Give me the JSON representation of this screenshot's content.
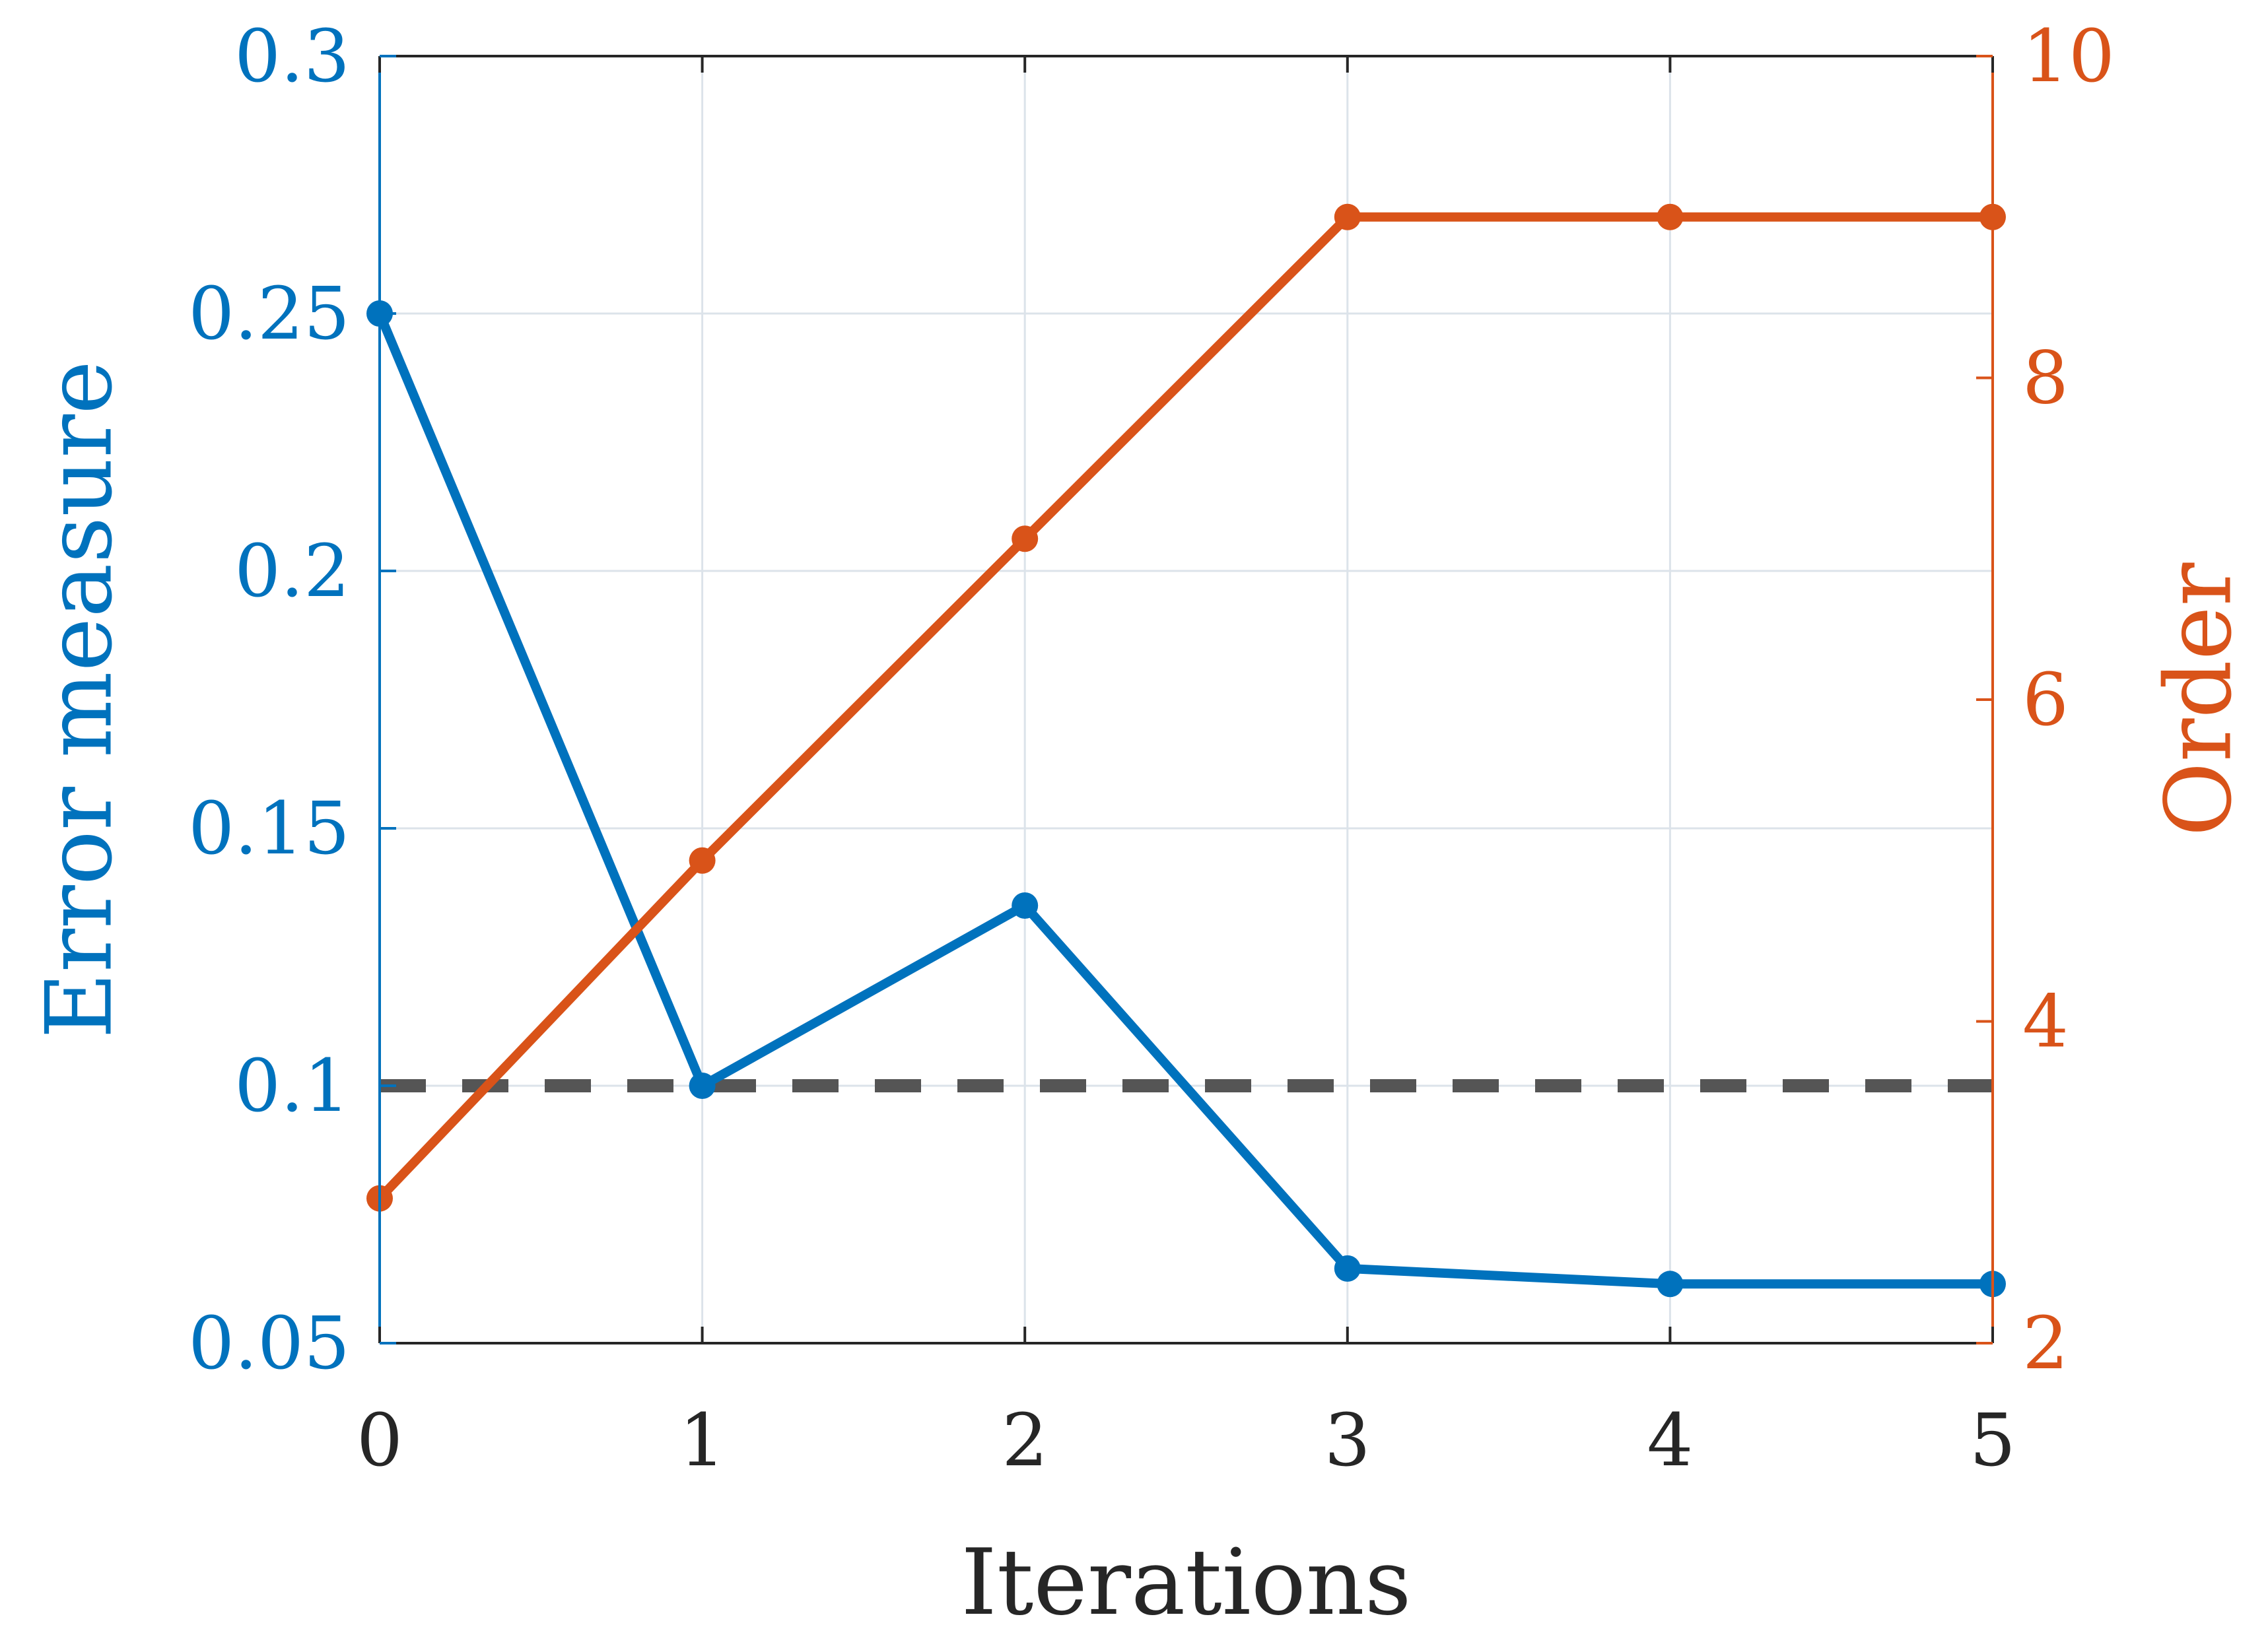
{
  "colors": {
    "left": "#0072BD",
    "right": "#D95319",
    "text": "#262626",
    "threshold": "#555555",
    "grid": "#DCE3EA"
  },
  "chart_data": {
    "type": "line",
    "title": "",
    "xlabel": "Iterations",
    "ylabel_left": "Error measure",
    "ylabel_right": "Order",
    "xlim": [
      0,
      5
    ],
    "ylim_left": [
      0.05,
      0.3
    ],
    "ylim_right": [
      2,
      10
    ],
    "x_ticks": [
      "0",
      "1",
      "2",
      "3",
      "4",
      "5"
    ],
    "y_left_ticks": [
      "0.05",
      "0.1",
      "0.15",
      "0.2",
      "0.25",
      "0.3"
    ],
    "y_right_ticks": [
      "2",
      "4",
      "6",
      "8",
      "10"
    ],
    "grid": true,
    "x": [
      0,
      1,
      2,
      3,
      4,
      5
    ],
    "series": [
      {
        "axis": "left",
        "marker": "circle",
        "values": [
          0.25,
          0.1,
          0.135,
          0.0645,
          0.0615,
          0.0615
        ]
      },
      {
        "axis": "right",
        "marker": "circle",
        "values": [
          2.9,
          5.0,
          7.0,
          9.0,
          9.0,
          9.0
        ]
      }
    ],
    "threshold": {
      "axis": "left",
      "value": 0.1,
      "style": "dashed"
    }
  }
}
